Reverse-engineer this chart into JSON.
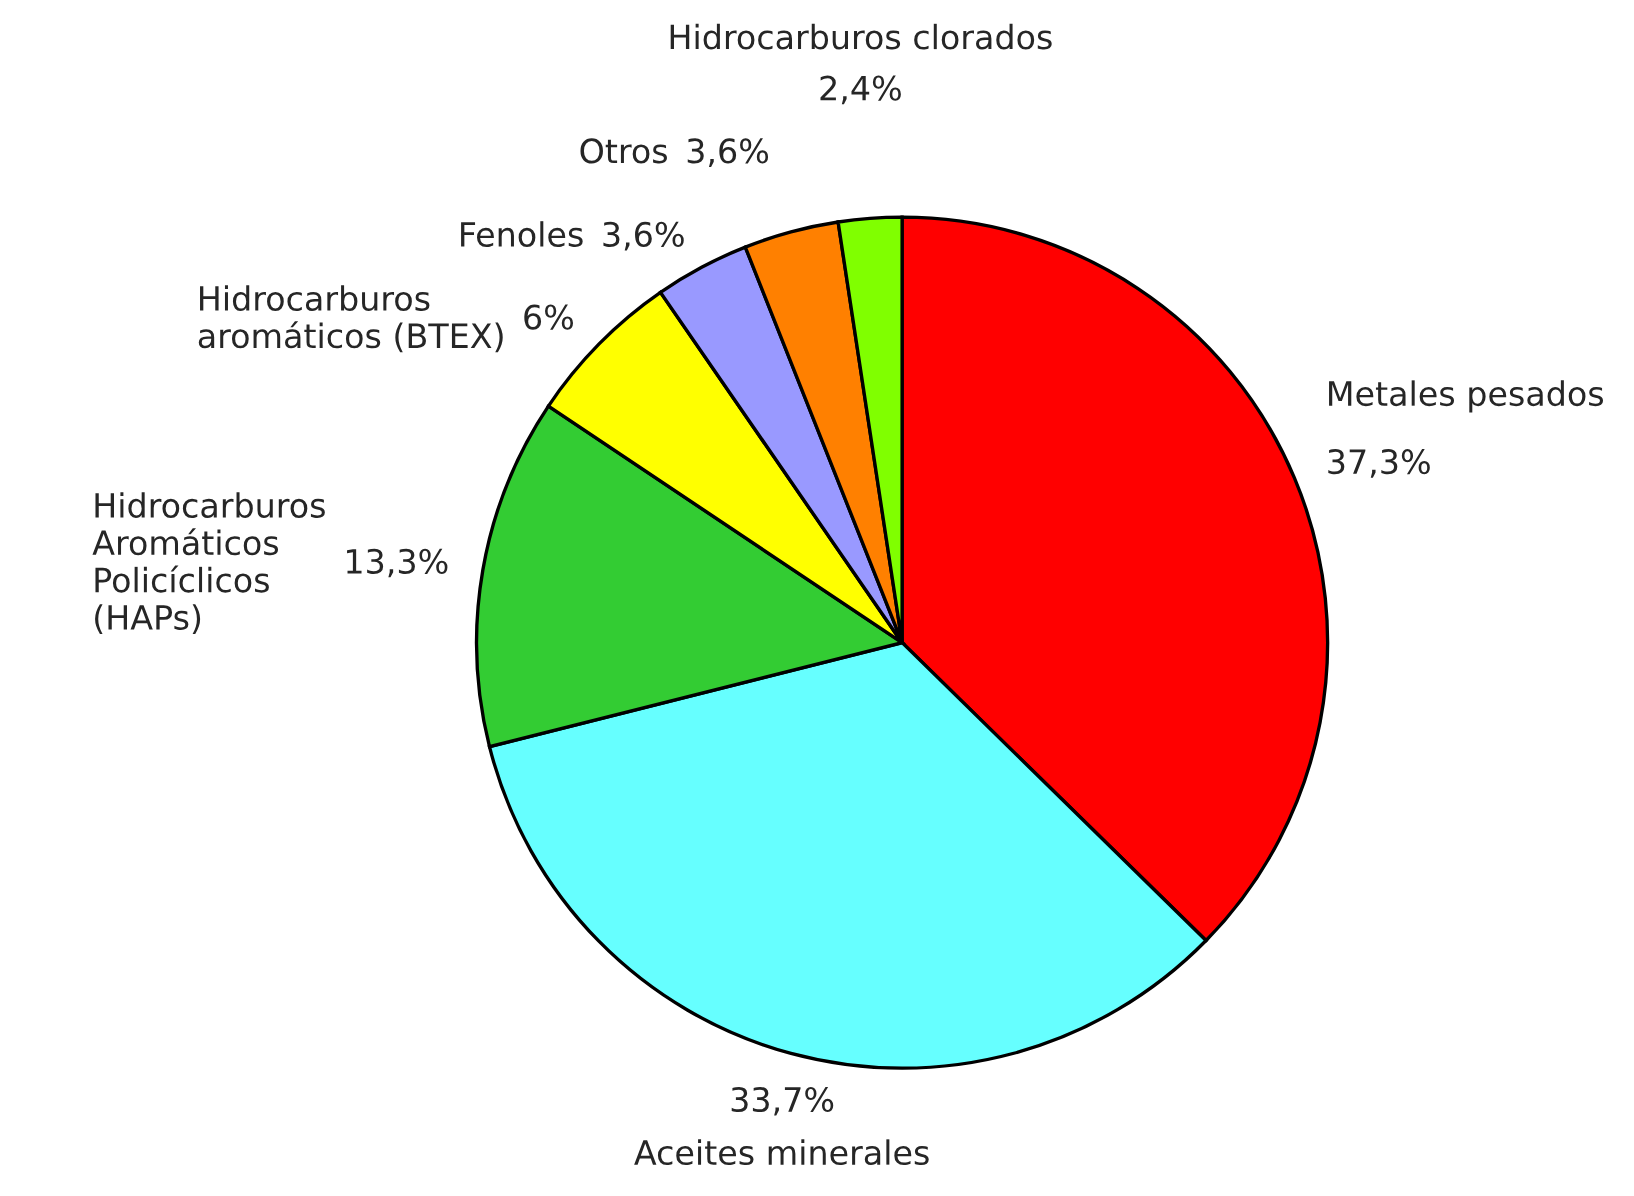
{
  "chart_data": {
    "type": "pie",
    "categories": [
      "Metales pesados",
      "Aceites minerales",
      "Hidrocarburos\nAromáticos\nPolicíclicos\n(HAPs)",
      "Hidrocarburos\naromáticos (BTEX)",
      "Fenoles",
      "Otros",
      "Hidrocarburos clorados"
    ],
    "values": [
      37.3,
      33.7,
      13.3,
      6,
      3.6,
      3.6,
      2.4
    ],
    "value_labels": [
      "37,3%",
      "33,7%",
      "13,3%",
      "6%",
      "3,6%",
      "3,6%",
      "2,4%"
    ],
    "colors": [
      "#ff0000",
      "#66ffff",
      "#33cc33",
      "#ffff00",
      "#9999ff",
      "#ff8000",
      "#80ff00"
    ]
  }
}
